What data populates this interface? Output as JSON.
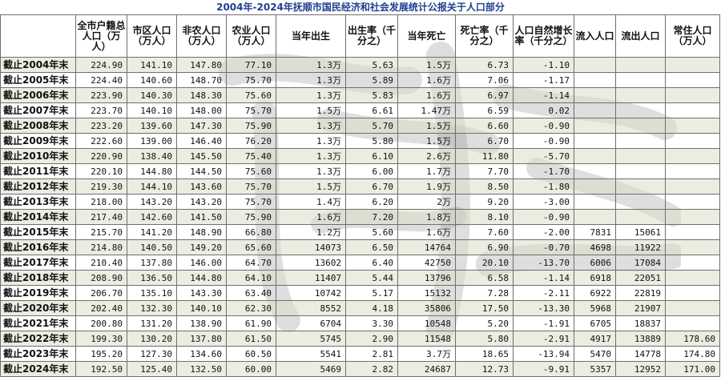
{
  "title": "2004年-2024年抚顺市国民经济和社会发展统计公报关于人口部分",
  "headers": [
    "",
    "全市户籍总人口（万人）",
    "市区人口（万人）",
    "非农人口（万人）",
    "农业人口（万人）",
    "当年出生",
    "出生率（千分之）",
    "当年死亡",
    "死亡率（千分之）",
    "人口自然增长率（千分之）",
    "流入人口",
    "流出人口",
    "常住人口（万人）"
  ],
  "rows": [
    [
      "截止2004年末",
      "224.90",
      "141.10",
      "147.80",
      "77.10",
      "1.3万",
      "5.63",
      "1.5万",
      "6.73",
      "-1.10",
      "",
      "",
      ""
    ],
    [
      "截止2005年末",
      "224.40",
      "140.60",
      "148.70",
      "75.70",
      "1.3万",
      "5.89",
      "1.6万",
      "7.06",
      "-1.17",
      "",
      "",
      ""
    ],
    [
      "截止2006年末",
      "223.90",
      "140.30",
      "148.30",
      "75.60",
      "1.3万",
      "5.83",
      "1.6万",
      "6.97",
      "-1.14",
      "",
      "",
      ""
    ],
    [
      "截止2007年末",
      "223.70",
      "140.10",
      "148.00",
      "75.70",
      "1.5万",
      "6.61",
      "1.47万",
      "6.59",
      "0.02",
      "",
      "",
      ""
    ],
    [
      "截止2008年末",
      "223.20",
      "139.60",
      "147.30",
      "75.90",
      "1.3万",
      "5.70",
      "1.5万",
      "6.60",
      "-0.90",
      "",
      "",
      ""
    ],
    [
      "截止2009年末",
      "222.60",
      "139.00",
      "146.40",
      "76.20",
      "1.3万",
      "5.80",
      "1.5万",
      "6.70",
      "-0.90",
      "",
      "",
      ""
    ],
    [
      "截止2010年末",
      "220.90",
      "138.40",
      "145.50",
      "75.40",
      "1.3万",
      "6.10",
      "2.6万",
      "11.80",
      "-5.70",
      "",
      "",
      ""
    ],
    [
      "截止2011年末",
      "220.10",
      "144.80",
      "144.50",
      "75.60",
      "1.3万",
      "6.00",
      "1.7万",
      "7.70",
      "-1.70",
      "",
      "",
      ""
    ],
    [
      "截止2012年末",
      "219.30",
      "144.10",
      "143.60",
      "75.70",
      "1.5万",
      "6.70",
      "1.9万",
      "8.50",
      "-1.80",
      "",
      "",
      ""
    ],
    [
      "截止2013年末",
      "218.00",
      "143.20",
      "143.20",
      "75.70",
      "1.4万",
      "6.20",
      "2万",
      "9.20",
      "-3.00",
      "",
      "",
      ""
    ],
    [
      "截止2014年末",
      "217.40",
      "142.60",
      "141.50",
      "75.90",
      "1.6万",
      "7.20",
      "1.8万",
      "8.10",
      "-0.90",
      "",
      "",
      ""
    ],
    [
      "截止2015年末",
      "215.70",
      "141.20",
      "148.90",
      "66.80",
      "1.2万",
      "5.60",
      "1.6万",
      "7.60",
      "-2.00",
      "7831",
      "15061",
      ""
    ],
    [
      "截止2016年末",
      "214.80",
      "140.50",
      "149.20",
      "65.60",
      "14073",
      "6.50",
      "14764",
      "6.90",
      "-0.70",
      "4698",
      "11922",
      ""
    ],
    [
      "截止2017年末",
      "210.40",
      "137.80",
      "146.00",
      "64.70",
      "13602",
      "6.40",
      "42750",
      "20.10",
      "-13.70",
      "6006",
      "17084",
      ""
    ],
    [
      "截止2018年末",
      "208.90",
      "136.50",
      "144.80",
      "64.10",
      "11407",
      "5.44",
      "13796",
      "6.58",
      "-1.14",
      "6918",
      "22051",
      ""
    ],
    [
      "截止2019年末",
      "206.70",
      "135.10",
      "143.30",
      "63.40",
      "10742",
      "5.17",
      "15132",
      "7.28",
      "-2.11",
      "6922",
      "22819",
      ""
    ],
    [
      "截止2020年末",
      "202.40",
      "132.30",
      "140.10",
      "62.30",
      "8552",
      "4.18",
      "35806",
      "17.50",
      "-13.30",
      "5968",
      "21907",
      ""
    ],
    [
      "截止2021年末",
      "200.80",
      "131.20",
      "138.90",
      "61.90",
      "6704",
      "3.30",
      "10548",
      "5.20",
      "-1.91",
      "6705",
      "18837",
      ""
    ],
    [
      "截止2022年末",
      "199.30",
      "130.20",
      "137.80",
      "61.50",
      "5745",
      "2.90",
      "11548",
      "5.80",
      "-2.91",
      "4917",
      "13889",
      "178.60"
    ],
    [
      "截止2023年末",
      "195.20",
      "127.30",
      "134.60",
      "60.50",
      "5541",
      "2.81",
      "3.7万",
      "18.65",
      "-13.94",
      "5470",
      "14778",
      "174.80"
    ],
    [
      "截止2024年末",
      "192.50",
      "125.40",
      "132.50",
      "60.00",
      "5469",
      "2.82",
      "24687",
      "12.73",
      "-9.91",
      "5357",
      "12952",
      "171.00"
    ]
  ],
  "colors": {
    "title": "#1f3f8f",
    "shade": "#ddddc8",
    "border": "#6f6f6f"
  }
}
